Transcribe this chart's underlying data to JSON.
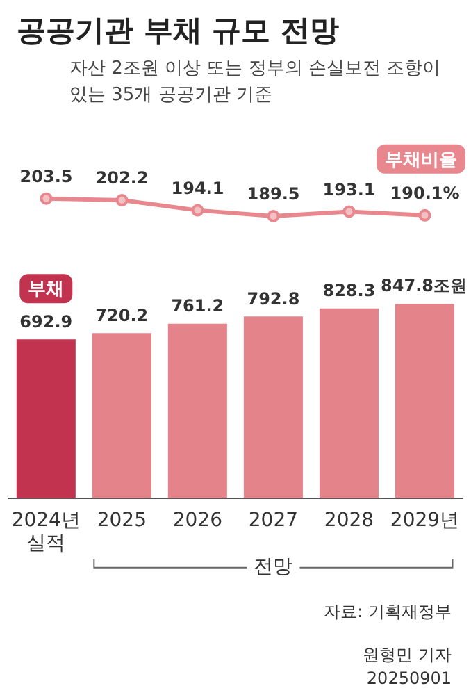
{
  "chart_data": [
    {
      "type": "line",
      "title": "공공기관 부채 규모 전망",
      "subtitle": "자산 2조원 이상 또는 정부의 손실보전 조항이 있는 35개 공공기관 기준",
      "categories": [
        null,
        null,
        null,
        null,
        null,
        null
      ],
      "tick_labels": false,
      "grid": false,
      "legend": false,
      "marker": "circle",
      "series": [
        {
          "name": "부채비율",
          "color": "#e8878d",
          "values": [
            203.5,
            202.2,
            194.1,
            189.5,
            193.1,
            190.1
          ],
          "value_labels": [
            "203.5",
            "202.2",
            "194.1",
            "189.5",
            "193.1",
            "190.1%"
          ]
        }
      ]
    },
    {
      "type": "bar",
      "categories": [
        "2024년\n실적",
        "2025",
        "2026",
        "2027",
        "2028",
        "2029년"
      ],
      "tick_labels": "x",
      "grid": false,
      "legend": false,
      "series": [
        {
          "name": "부채",
          "colors": [
            "#c2334f",
            "#e5838b",
            "#e5838b",
            "#e5838b",
            "#e5838b",
            "#e5838b"
          ],
          "values": [
            692.9,
            720.2,
            761.2,
            792.8,
            828.3,
            847.8
          ],
          "value_labels": [
            "692.9",
            "720.2",
            "761.2",
            "792.8",
            "828.3",
            "847.8조원"
          ]
        }
      ],
      "annotations": [
        "전망",
        "자료: 기획재정부",
        "원형민 기자",
        "20250901"
      ]
    }
  ]
}
